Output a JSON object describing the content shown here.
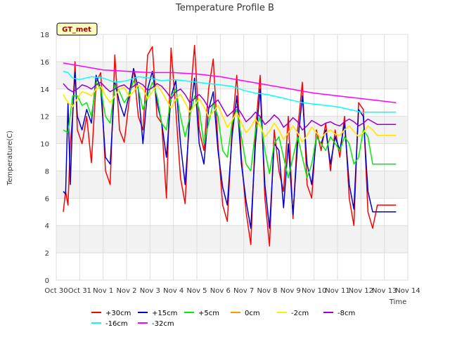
{
  "chart_data": {
    "type": "line",
    "title": "Temperature Profile B",
    "xlabel": "Time",
    "ylabel": "Temperature(C)",
    "badge": "GT_met",
    "ylim": [
      0,
      18
    ],
    "yticks": [
      0,
      2,
      4,
      6,
      8,
      10,
      12,
      14,
      16,
      18
    ],
    "xlim": [
      0,
      15
    ],
    "xtick_labels": [
      "Oct 30",
      "Oct 31",
      "Nov 1",
      "Nov 2",
      "Nov 3",
      "Nov 4",
      "Nov 5",
      "Nov 6",
      "Nov 7",
      "Nov 8",
      "Nov 9",
      "Nov 10",
      "Nov 11",
      "Nov 12",
      "Nov 13",
      "Nov 14"
    ],
    "grid": true,
    "legend_position": "bottom",
    "series": [
      {
        "name": "+30cm",
        "color": "#ff0000",
        "x": [
          0.3,
          0.4,
          0.5,
          0.6,
          0.7,
          0.8,
          0.9,
          1.1,
          1.3,
          1.5,
          1.7,
          1.9,
          2.1,
          2.3,
          2.5,
          2.7,
          2.9,
          3.1,
          3.3,
          3.5,
          3.7,
          3.9,
          4.1,
          4.3,
          4.5,
          4.7,
          4.9,
          5.1,
          5.3,
          5.5,
          5.7,
          5.9,
          6.1,
          6.3,
          6.5,
          6.7,
          6.9,
          7.1,
          7.3,
          7.5,
          7.7,
          7.9,
          8.1,
          8.3,
          8.5,
          8.7,
          8.9,
          9.1,
          9.3,
          9.5,
          9.7,
          9.9,
          10.1,
          10.3,
          10.5,
          10.7,
          10.9,
          11.1,
          11.3,
          11.5,
          11.7,
          11.9,
          12.1,
          12.3,
          12.5,
          12.7,
          12.9,
          13.1,
          13.3,
          13.5,
          13.7,
          13.9,
          14.1,
          14.3,
          14.5
        ],
        "y": [
          5.0,
          6.5,
          5.5,
          10.0,
          12.0,
          16.0,
          11.0,
          10.0,
          12.0,
          8.6,
          14.5,
          15.2,
          8.0,
          7.0,
          16.5,
          11.0,
          10.1,
          13.0,
          15.5,
          12.0,
          11.0,
          16.5,
          17.1,
          12.0,
          11.5,
          6.0,
          17.0,
          12.5,
          7.5,
          5.6,
          13.0,
          17.2,
          11.0,
          9.5,
          14.0,
          16.2,
          10.0,
          5.5,
          4.3,
          11.0,
          15.0,
          9.0,
          5.0,
          2.6,
          11.0,
          15.0,
          6.0,
          2.5,
          11.0,
          8.0,
          6.5,
          12.0,
          4.5,
          11.0,
          14.5,
          7.0,
          6.0,
          11.0,
          9.5,
          11.5,
          8.0,
          11.0,
          9.0,
          12.0,
          6.0,
          4.0,
          13.0,
          12.5,
          5.0,
          3.8,
          5.5,
          5.5,
          5.5,
          5.5,
          5.5
        ]
      },
      {
        "name": "+15cm",
        "color": "#0000cc",
        "x": [
          0.3,
          0.4,
          0.5,
          0.6,
          0.7,
          0.8,
          0.9,
          1.1,
          1.3,
          1.5,
          1.7,
          1.9,
          2.1,
          2.3,
          2.5,
          2.7,
          2.9,
          3.1,
          3.3,
          3.5,
          3.7,
          3.9,
          4.1,
          4.3,
          4.5,
          4.7,
          4.9,
          5.1,
          5.3,
          5.5,
          5.7,
          5.9,
          6.1,
          6.3,
          6.5,
          6.7,
          6.9,
          7.1,
          7.3,
          7.5,
          7.7,
          7.9,
          8.1,
          8.3,
          8.5,
          8.7,
          8.9,
          9.1,
          9.3,
          9.5,
          9.7,
          9.9,
          10.1,
          10.3,
          10.5,
          10.7,
          10.9,
          11.1,
          11.3,
          11.5,
          11.7,
          11.9,
          12.1,
          12.3,
          12.5,
          12.7,
          12.9,
          13.1,
          13.3,
          13.5,
          13.7,
          13.9,
          14.1,
          14.3,
          14.5
        ],
        "y": [
          6.5,
          6.3,
          13.0,
          7.0,
          12.0,
          15.2,
          12.0,
          11.0,
          12.5,
          11.5,
          15.0,
          14.0,
          9.0,
          8.5,
          14.5,
          13.0,
          12.0,
          13.5,
          15.5,
          14.0,
          10.0,
          14.0,
          15.3,
          13.0,
          11.5,
          9.0,
          13.5,
          14.6,
          10.0,
          7.0,
          12.0,
          14.8,
          10.0,
          8.5,
          12.5,
          13.8,
          9.5,
          6.8,
          5.5,
          10.5,
          13.5,
          8.5,
          5.8,
          3.8,
          10.0,
          14.0,
          7.0,
          3.8,
          10.0,
          9.5,
          5.3,
          10.0,
          4.8,
          10.0,
          13.5,
          8.5,
          7.0,
          10.5,
          10.0,
          11.0,
          8.5,
          10.5,
          9.5,
          11.5,
          7.0,
          5.2,
          12.5,
          12.0,
          6.5,
          5.0,
          5.0,
          5.0,
          5.0,
          5.0,
          5.0
        ]
      },
      {
        "name": "+5cm",
        "color": "#00ee00",
        "x": [
          0.3,
          0.5,
          0.7,
          0.9,
          1.1,
          1.3,
          1.5,
          1.7,
          1.9,
          2.1,
          2.3,
          2.5,
          2.7,
          2.9,
          3.1,
          3.3,
          3.5,
          3.7,
          3.9,
          4.1,
          4.3,
          4.5,
          4.7,
          4.9,
          5.1,
          5.3,
          5.5,
          5.7,
          5.9,
          6.1,
          6.3,
          6.5,
          6.7,
          6.9,
          7.1,
          7.3,
          7.5,
          7.7,
          7.9,
          8.1,
          8.3,
          8.5,
          8.7,
          8.9,
          9.1,
          9.3,
          9.5,
          9.7,
          9.9,
          10.1,
          10.3,
          10.5,
          10.7,
          10.9,
          11.1,
          11.3,
          11.5,
          11.7,
          11.9,
          12.1,
          12.3,
          12.5,
          12.7,
          12.9,
          13.1,
          13.3,
          13.5,
          13.7,
          13.9,
          14.1,
          14.3,
          14.5
        ],
        "y": [
          11.0,
          10.8,
          13.5,
          13.5,
          12.8,
          13.0,
          12.0,
          14.5,
          14.0,
          12.0,
          11.5,
          14.3,
          13.8,
          13.0,
          13.5,
          14.6,
          14.0,
          12.5,
          13.5,
          14.5,
          13.5,
          11.5,
          11.0,
          13.5,
          14.0,
          12.0,
          10.5,
          12.0,
          13.5,
          12.5,
          10.0,
          11.5,
          13.0,
          12.0,
          9.5,
          9.0,
          11.5,
          12.5,
          10.5,
          8.5,
          8.0,
          11.0,
          12.0,
          9.5,
          7.8,
          10.0,
          10.5,
          9.0,
          7.5,
          9.0,
          10.5,
          9.0,
          7.5,
          8.5,
          10.5,
          10.0,
          9.5,
          10.5,
          10.0,
          9.5,
          10.5,
          10.0,
          8.5,
          9.0,
          11.0,
          10.5,
          8.5,
          8.5,
          8.5,
          8.5,
          8.5,
          8.5
        ]
      },
      {
        "name": "0cm",
        "color": "#ff9900",
        "x": [
          0.3,
          0.5,
          0.7,
          0.9,
          1.1,
          1.3,
          1.5,
          1.7,
          1.9,
          2.1,
          2.3,
          2.5,
          2.7,
          2.9,
          3.1,
          3.3,
          3.5,
          3.7,
          3.9,
          4.1,
          4.3,
          4.5,
          4.7,
          4.9,
          5.1,
          5.3,
          5.5,
          5.7,
          5.9,
          6.1,
          6.3,
          6.5,
          6.7,
          6.9,
          7.1,
          7.3,
          7.5,
          7.7,
          7.9,
          8.1,
          8.3,
          8.5,
          8.7,
          8.9,
          9.1,
          9.3,
          9.5,
          9.7,
          9.9,
          10.1,
          10.3,
          10.5,
          10.7,
          10.9,
          11.1,
          11.3,
          11.5,
          11.7,
          11.9,
          12.1,
          12.3,
          12.5,
          12.7,
          12.9,
          13.1,
          13.3,
          13.5,
          13.7,
          13.9,
          14.1,
          14.3,
          14.5
        ],
        "y": [
          13.6,
          13.0,
          12.7,
          13.3,
          13.8,
          13.7,
          13.5,
          14.0,
          14.2,
          13.5,
          13.0,
          13.5,
          14.0,
          14.1,
          13.5,
          13.8,
          14.3,
          14.0,
          13.3,
          13.8,
          14.3,
          13.8,
          13.2,
          12.6,
          13.3,
          13.6,
          13.0,
          12.3,
          12.8,
          13.3,
          12.7,
          12.0,
          12.3,
          12.8,
          12.0,
          11.2,
          11.7,
          12.3,
          11.5,
          10.8,
          11.2,
          11.8,
          11.3,
          10.5,
          10.9,
          11.5,
          11.0,
          10.3,
          10.8,
          11.3,
          10.8,
          10.1,
          10.6,
          11.2,
          10.8,
          10.4,
          10.8,
          11.0,
          10.7,
          10.6,
          11.0,
          11.3,
          10.9,
          10.5,
          10.8,
          11.3,
          11.0,
          10.6,
          10.6,
          10.6,
          10.6,
          10.6
        ]
      },
      {
        "name": "-2cm",
        "color": "#ffee00",
        "x": [
          0.3,
          0.5,
          0.7,
          0.9,
          1.1,
          1.3,
          1.5,
          1.7,
          1.9,
          2.1,
          2.3,
          2.5,
          2.7,
          2.9,
          3.1,
          3.3,
          3.5,
          3.7,
          3.9,
          4.1,
          4.3,
          4.5,
          4.7,
          4.9,
          5.1,
          5.3,
          5.5,
          5.7,
          5.9,
          6.1,
          6.3,
          6.5,
          6.7,
          6.9,
          7.1,
          7.3,
          7.5,
          7.7,
          7.9,
          8.1,
          8.3,
          8.5,
          8.7,
          8.9,
          9.1,
          9.3,
          9.5,
          9.7,
          9.9,
          10.1,
          10.3,
          10.5,
          10.7,
          10.9,
          11.1,
          11.3,
          11.5,
          11.7,
          11.9,
          12.1,
          12.3,
          12.5,
          12.7,
          12.9,
          13.1,
          13.3,
          13.5,
          13.7,
          13.9,
          14.1,
          14.3,
          14.5
        ],
        "y": [
          13.6,
          13.0,
          12.7,
          13.3,
          13.8,
          13.7,
          13.5,
          14.0,
          14.2,
          13.5,
          13.0,
          13.5,
          14.0,
          14.1,
          13.5,
          13.8,
          14.3,
          14.0,
          13.3,
          13.8,
          14.3,
          13.8,
          13.2,
          12.6,
          13.3,
          13.6,
          13.0,
          12.3,
          12.8,
          13.3,
          12.7,
          12.0,
          12.3,
          12.8,
          12.0,
          11.2,
          11.7,
          12.3,
          11.5,
          10.8,
          11.2,
          11.8,
          11.3,
          10.5,
          10.9,
          11.5,
          11.0,
          10.3,
          10.8,
          11.3,
          10.8,
          10.1,
          10.6,
          11.2,
          10.8,
          10.4,
          10.8,
          11.0,
          10.7,
          10.6,
          11.0,
          11.3,
          10.9,
          10.5,
          10.8,
          11.3,
          11.0,
          10.6,
          10.6,
          10.6,
          10.6,
          10.6
        ]
      },
      {
        "name": "-8cm",
        "color": "#9900cc",
        "x": [
          0.3,
          0.5,
          0.7,
          0.9,
          1.1,
          1.3,
          1.5,
          1.7,
          1.9,
          2.1,
          2.3,
          2.5,
          2.7,
          2.9,
          3.1,
          3.3,
          3.5,
          3.7,
          3.9,
          4.1,
          4.3,
          4.5,
          4.7,
          4.9,
          5.1,
          5.3,
          5.5,
          5.7,
          5.9,
          6.1,
          6.3,
          6.5,
          6.7,
          6.9,
          7.1,
          7.3,
          7.5,
          7.7,
          7.9,
          8.1,
          8.3,
          8.5,
          8.7,
          8.9,
          9.1,
          9.3,
          9.5,
          9.7,
          9.9,
          10.1,
          10.3,
          10.5,
          10.7,
          10.9,
          11.1,
          11.3,
          11.5,
          11.7,
          11.9,
          12.1,
          12.3,
          12.5,
          12.7,
          12.9,
          13.1,
          13.3,
          13.5,
          13.7,
          13.9,
          14.1,
          14.3,
          14.5
        ],
        "y": [
          14.4,
          14.0,
          13.8,
          14.0,
          14.3,
          14.2,
          14.0,
          14.3,
          14.5,
          14.1,
          13.8,
          14.0,
          14.2,
          14.3,
          14.0,
          14.2,
          14.5,
          14.3,
          13.9,
          14.1,
          14.4,
          14.2,
          13.8,
          13.3,
          13.8,
          14.0,
          13.6,
          13.0,
          13.3,
          13.6,
          13.2,
          12.6,
          12.9,
          13.2,
          12.6,
          12.0,
          12.3,
          12.7,
          12.2,
          11.6,
          11.9,
          12.3,
          12.0,
          11.4,
          11.7,
          12.1,
          11.8,
          11.2,
          11.5,
          11.9,
          11.6,
          11.0,
          11.3,
          11.7,
          11.5,
          11.3,
          11.5,
          11.6,
          11.4,
          11.3,
          11.6,
          11.8,
          11.6,
          11.3,
          11.5,
          11.8,
          11.6,
          11.4,
          11.4,
          11.4,
          11.4,
          11.4
        ]
      },
      {
        "name": "-16cm",
        "color": "#00ffff",
        "x": [
          0.3,
          0.5,
          0.7,
          1.0,
          1.5,
          2.0,
          2.5,
          3.0,
          3.5,
          4.0,
          4.5,
          5.0,
          5.5,
          6.0,
          6.5,
          7.0,
          7.5,
          8.0,
          8.5,
          9.0,
          9.5,
          10.0,
          10.5,
          11.0,
          11.5,
          12.0,
          12.5,
          13.0,
          13.5,
          14.0,
          14.5
        ],
        "y": [
          15.3,
          15.2,
          14.8,
          14.7,
          14.9,
          14.8,
          14.5,
          14.6,
          14.9,
          14.8,
          14.6,
          14.7,
          14.6,
          14.5,
          14.4,
          14.3,
          14.2,
          13.9,
          13.7,
          13.6,
          13.4,
          13.2,
          13.0,
          12.9,
          12.8,
          12.7,
          12.5,
          12.3,
          12.3,
          12.3,
          12.3
        ]
      },
      {
        "name": "-32cm",
        "color": "#ff00ff",
        "x": [
          0.3,
          1.0,
          2.0,
          3.0,
          4.0,
          5.0,
          6.0,
          7.0,
          8.0,
          9.0,
          10.0,
          11.0,
          12.0,
          13.0,
          14.0,
          14.5
        ],
        "y": [
          15.9,
          15.7,
          15.4,
          15.3,
          15.2,
          15.2,
          15.1,
          14.9,
          14.6,
          14.3,
          14.0,
          13.7,
          13.5,
          13.3,
          13.1,
          13.0
        ]
      }
    ]
  }
}
